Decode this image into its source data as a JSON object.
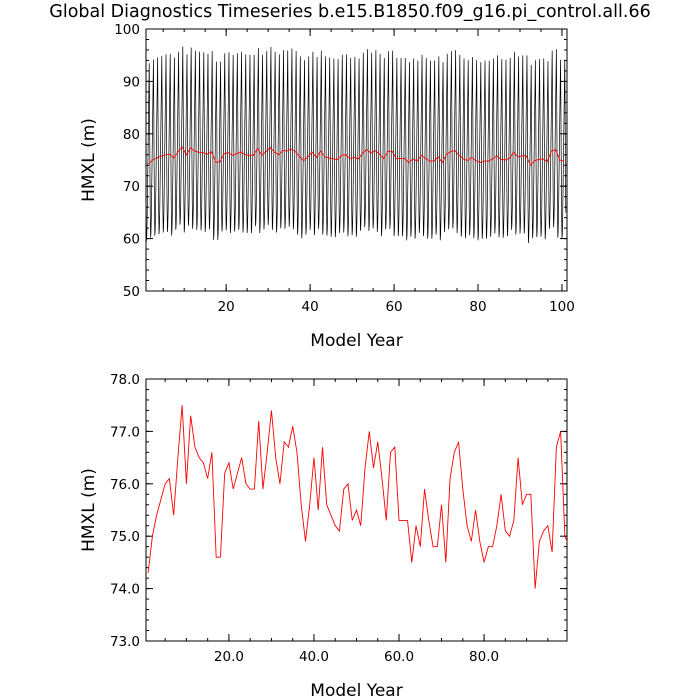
{
  "page": {
    "title": "Global Diagnostics Timeseries b.e15.B1850.f09_g16.pi_control.all.66"
  },
  "colors": {
    "line": "#000000",
    "mean": "#ff0000",
    "axis": "#000000"
  },
  "chart_data": [
    {
      "type": "line",
      "xlabel": "Model Year",
      "ylabel": "HMXL (m)",
      "xlim": [
        0.9,
        101.2
      ],
      "ylim": [
        50,
        100
      ],
      "xticks": [
        20,
        40,
        60,
        80,
        100
      ],
      "xtick_labels": [
        "20",
        "40",
        "60",
        "80",
        "100"
      ],
      "yticks": [
        50,
        60,
        70,
        80,
        90,
        100
      ],
      "ytick_labels": [
        "50",
        "60",
        "70",
        "80",
        "90",
        "100"
      ],
      "grid": false,
      "series": [
        {
          "kind": "monthly",
          "color": "#000000",
          "seasonal_profile": [
            62,
            63,
            66,
            71,
            76,
            81,
            86,
            91,
            96,
            87,
            76,
            67
          ],
          "annual_means": [
            74.3,
            75.0,
            75.4,
            75.7,
            76.0,
            76.1,
            75.4,
            76.5,
            77.5,
            76.0,
            77.3,
            76.7,
            76.5,
            76.4,
            76.1,
            76.6,
            74.6,
            74.6,
            76.2,
            76.4,
            75.9,
            76.2,
            76.5,
            76.0,
            75.9,
            75.9,
            77.2,
            75.9,
            76.6,
            77.4,
            76.5,
            76.0,
            76.8,
            76.7,
            77.1,
            76.6,
            75.6,
            74.9,
            75.6,
            76.5,
            75.5,
            76.7,
            75.6,
            75.4,
            75.2,
            75.1,
            75.9,
            76.0,
            75.3,
            75.5,
            75.2,
            76.3,
            77.0,
            76.3,
            76.8,
            76.1,
            75.3,
            76.6,
            76.7,
            75.3,
            75.3,
            75.3,
            74.5,
            75.2,
            74.8,
            75.9,
            75.3,
            74.8,
            74.8,
            75.6,
            74.5,
            76.1,
            76.6,
            76.8,
            75.9,
            75.2,
            74.9,
            75.5,
            74.9,
            74.5,
            74.8,
            74.8,
            75.2,
            75.8,
            75.1,
            75.0,
            75.3,
            76.5,
            75.6,
            75.8,
            75.8,
            74.0,
            74.9,
            75.1,
            75.2,
            74.7,
            76.7,
            77.0,
            75.0,
            74.8
          ]
        },
        {
          "kind": "annual_mean",
          "color": "#ff0000",
          "x_start": 1.5,
          "x_step": 1
        }
      ]
    },
    {
      "type": "line",
      "xlabel": "Model Year",
      "ylabel": "HMXL (m)",
      "xlim": [
        0.5,
        99.5
      ],
      "ylim": [
        73.0,
        78.0
      ],
      "xticks": [
        20,
        40,
        60,
        80
      ],
      "xtick_labels": [
        "20.0",
        "40.0",
        "60.0",
        "80.0"
      ],
      "yticks": [
        73,
        74,
        75,
        76,
        77,
        78
      ],
      "ytick_labels": [
        "73.0",
        "74.0",
        "75.0",
        "76.0",
        "77.0",
        "78.0"
      ],
      "grid": false,
      "series": [
        {
          "kind": "annual_mean",
          "color": "#ff0000",
          "x_start": 1,
          "x_step": 1,
          "values": [
            74.3,
            75.0,
            75.4,
            75.7,
            76.0,
            76.1,
            75.4,
            76.5,
            77.5,
            76.0,
            77.3,
            76.7,
            76.5,
            76.4,
            76.1,
            76.6,
            74.6,
            74.6,
            76.2,
            76.4,
            75.9,
            76.2,
            76.5,
            76.0,
            75.9,
            75.9,
            77.2,
            75.9,
            76.6,
            77.4,
            76.5,
            76.0,
            76.8,
            76.7,
            77.1,
            76.6,
            75.6,
            74.9,
            75.6,
            76.5,
            75.5,
            76.7,
            75.6,
            75.4,
            75.2,
            75.1,
            75.9,
            76.0,
            75.3,
            75.5,
            75.2,
            76.3,
            77.0,
            76.3,
            76.8,
            76.1,
            75.3,
            76.6,
            76.7,
            75.3,
            75.3,
            75.3,
            74.5,
            75.2,
            74.8,
            75.9,
            75.3,
            74.8,
            74.8,
            75.6,
            74.5,
            76.1,
            76.6,
            76.8,
            75.9,
            75.2,
            74.9,
            75.5,
            74.9,
            74.5,
            74.8,
            74.8,
            75.2,
            75.8,
            75.1,
            75.0,
            75.3,
            76.5,
            75.6,
            75.8,
            75.8,
            74.0,
            74.9,
            75.1,
            75.2,
            74.7,
            76.7,
            77.0,
            75.0,
            74.8
          ]
        }
      ]
    }
  ]
}
